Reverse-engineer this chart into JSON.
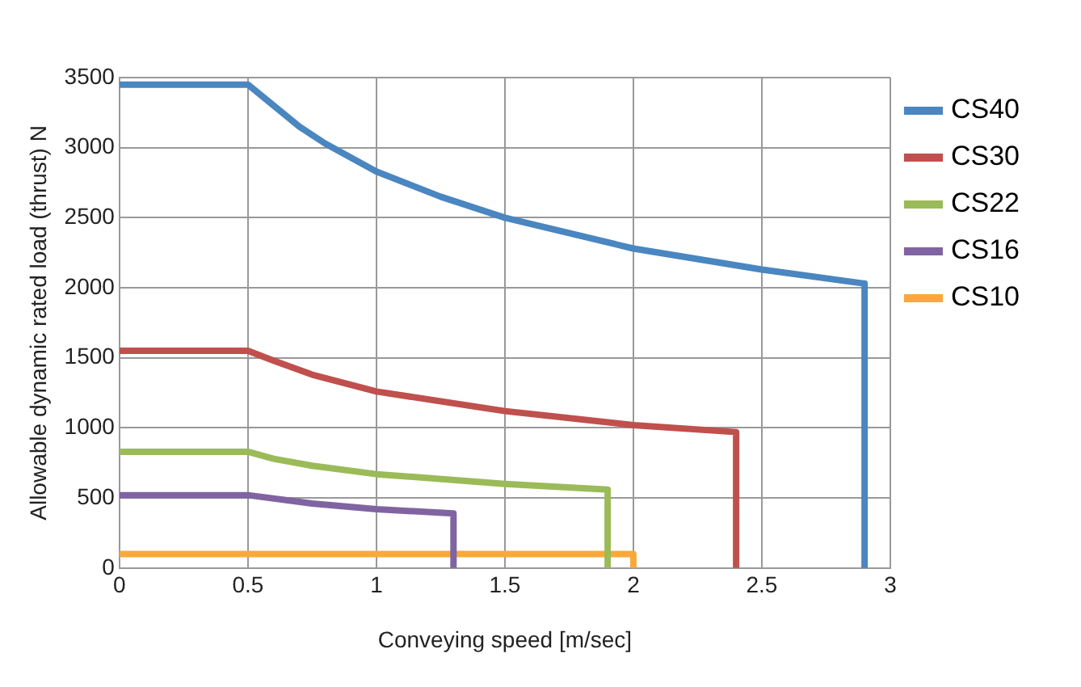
{
  "chart_data": {
    "type": "line",
    "xlabel": "Conveying speed [m/sec]",
    "ylabel": "Allowable dynamic rated load (thrust) N",
    "xlim": [
      0,
      3
    ],
    "xticks": [
      0,
      0.5,
      1,
      1.5,
      2,
      2.5,
      3
    ],
    "ylim": [
      0,
      3500
    ],
    "yticks": [
      0,
      500,
      1000,
      1500,
      2000,
      2500,
      3000,
      3500
    ],
    "grid": true,
    "legend": "right",
    "marker": "none",
    "line_style": "solid",
    "series": [
      {
        "name": "CS40",
        "color": "#4a86c0",
        "x": [
          0,
          0.5,
          0.6,
          0.7,
          0.8,
          1,
          1.25,
          1.5,
          2,
          2.5,
          2.9,
          2.9
        ],
        "values": [
          3450,
          3450,
          3300,
          3150,
          3030,
          2830,
          2650,
          2500,
          2280,
          2130,
          2030,
          0
        ]
      },
      {
        "name": "CS30",
        "color": "#c0504d",
        "x": [
          0,
          0.5,
          0.6,
          0.75,
          1,
          1.5,
          2,
          2.4,
          2.4
        ],
        "values": [
          1550,
          1550,
          1480,
          1380,
          1260,
          1120,
          1020,
          970,
          0
        ]
      },
      {
        "name": "CS22",
        "color": "#9bbb59",
        "x": [
          0,
          0.5,
          0.6,
          0.75,
          1,
          1.5,
          1.9,
          1.9
        ],
        "values": [
          830,
          830,
          780,
          730,
          670,
          600,
          560,
          0
        ]
      },
      {
        "name": "CS16",
        "color": "#8064a2",
        "x": [
          0,
          0.5,
          0.75,
          1,
          1.3,
          1.3
        ],
        "values": [
          520,
          520,
          460,
          420,
          390,
          0
        ]
      },
      {
        "name": "CS10",
        "color": "#f9a93b",
        "x": [
          0,
          2,
          2
        ],
        "values": [
          100,
          100,
          0
        ]
      }
    ]
  }
}
